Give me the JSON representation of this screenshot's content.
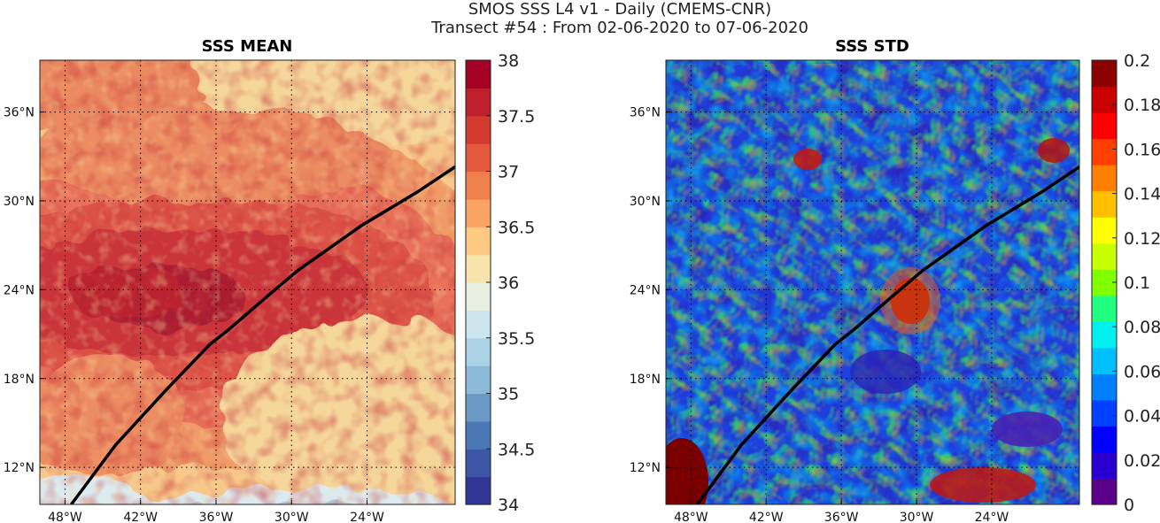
{
  "figure": {
    "title_line1": "SMOS SSS L4 v1 - Daily (CMEMS-CNR)",
    "title_line2": "Transect #54 : From 02-06-2020 to 07-06-2020"
  },
  "panels": [
    {
      "title": "SSS MEAN",
      "colormap": "RdYlBu_r",
      "colorbar_ticks": [
        "34",
        "34.5",
        "35",
        "35.5",
        "36",
        "36.5",
        "37",
        "37.5",
        "38"
      ],
      "colorbar_range": [
        34,
        38
      ]
    },
    {
      "title": "SSS STD",
      "colormap": "jet",
      "colorbar_ticks": [
        "0",
        "0.02",
        "0.04",
        "0.06",
        "0.08",
        "0.1",
        "0.12",
        "0.14",
        "0.16",
        "0.18",
        "0.2"
      ],
      "colorbar_range": [
        0,
        0.2
      ]
    }
  ],
  "map": {
    "lon_range": [
      -50,
      -17
    ],
    "lat_range": [
      9.5,
      39.5
    ],
    "lon_ticks": [
      {
        "value": -48,
        "label": "48°W"
      },
      {
        "value": -42,
        "label": "42°W"
      },
      {
        "value": -36,
        "label": "36°W"
      },
      {
        "value": -30,
        "label": "30°W"
      },
      {
        "value": -24,
        "label": "24°W"
      }
    ],
    "lat_ticks": [
      {
        "value": 12,
        "label": "12°N"
      },
      {
        "value": 18,
        "label": "18°N"
      },
      {
        "value": 24,
        "label": "24°N"
      },
      {
        "value": 30,
        "label": "30°N"
      },
      {
        "value": 36,
        "label": "36°N"
      }
    ],
    "transect_track": [
      [
        -47.5,
        9.5
      ],
      [
        -44,
        13.5
      ],
      [
        -40,
        17.2
      ],
      [
        -36.5,
        20.3
      ],
      [
        -35,
        21.3
      ],
      [
        -32,
        23.5
      ],
      [
        -29.5,
        25.3
      ],
      [
        -28,
        26.2
      ],
      [
        -24.5,
        28.3
      ],
      [
        -20,
        30.6
      ],
      [
        -17,
        32.3
      ]
    ],
    "transect_color": "#000000"
  }
}
